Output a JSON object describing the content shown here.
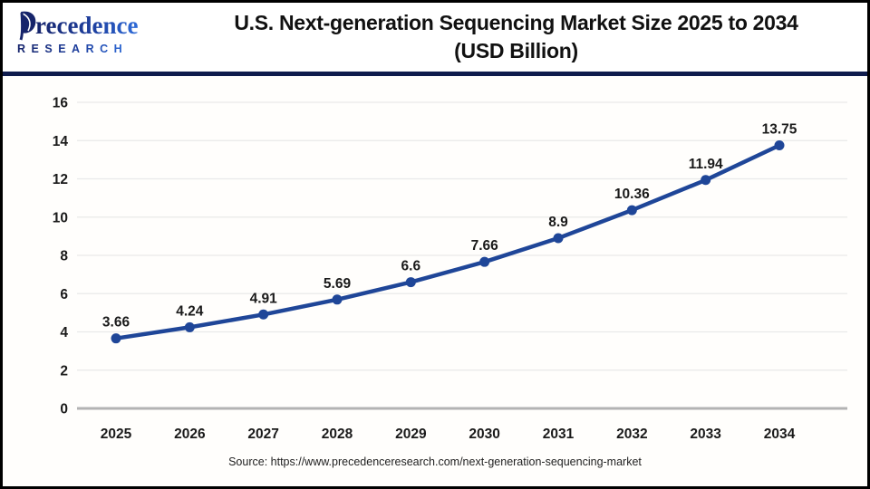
{
  "header": {
    "logo_line1": "Precedence",
    "logo_line2": "RESEARCH",
    "title_line1": "U.S. Next-generation Sequencing Market Size 2025 to 2034",
    "title_line2": "(USD Billion)"
  },
  "chart_data": {
    "type": "line",
    "title": "U.S. Next-generation Sequencing Market Size 2025 to 2034 (USD Billion)",
    "categories": [
      "2025",
      "2026",
      "2027",
      "2028",
      "2029",
      "2030",
      "2031",
      "2032",
      "2033",
      "2034"
    ],
    "values": [
      3.66,
      4.24,
      4.91,
      5.69,
      6.6,
      7.66,
      8.9,
      10.36,
      11.94,
      13.75
    ],
    "value_labels": [
      "3.66",
      "4.24",
      "4.91",
      "5.69",
      "6.6",
      "7.66",
      "8.9",
      "10.36",
      "11.94",
      "13.75"
    ],
    "xlabel": "",
    "ylabel": "",
    "ylim": [
      0,
      16
    ],
    "yticks": [
      0,
      2,
      4,
      6,
      8,
      10,
      12,
      14,
      16
    ],
    "grid": true,
    "legend": "none",
    "marker": "circle"
  },
  "footer": {
    "source": "Source: https://www.precedenceresearch.com/next-generation-sequencing-market"
  },
  "colors": {
    "line_blue": "#1f4698",
    "grid": "#e9e9e9",
    "axis": "#b3b3b3",
    "divider_navy": "#0f1b4c",
    "logo_dark": "#16246b",
    "logo_light": "#2e6bd8"
  }
}
